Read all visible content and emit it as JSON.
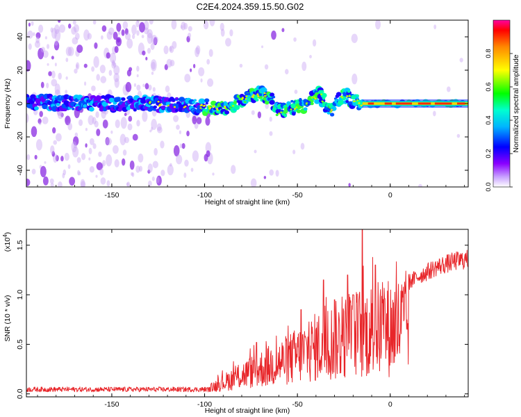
{
  "title": "C2E4.2024.359.15.50.G02",
  "chart_data": [
    {
      "type": "heatmap",
      "name": "spectrogram",
      "xlabel": "Height of straight line (km)",
      "ylabel": "Frequency (Hz)",
      "xlim": [
        -196,
        42
      ],
      "ylim": [
        -50,
        50
      ],
      "xticks": [
        -150,
        -100,
        -50,
        0
      ],
      "xtick_labels": [
        "-150",
        "-100",
        "-50",
        "0"
      ],
      "yticks": [
        -40,
        -20,
        0,
        20,
        40
      ],
      "ytick_labels": [
        "-40",
        "-20",
        "0",
        "20",
        "40"
      ],
      "colorbar": {
        "label": "Normalized spectral amplitude",
        "range": [
          0,
          1
        ],
        "ticks": [
          0.0,
          0.2,
          0.4,
          0.6,
          0.8
        ],
        "tick_labels": [
          "0.0",
          "0.2",
          "0.4",
          "0.6",
          "0.8"
        ],
        "colors": [
          "#ffffff",
          "#8a00ff",
          "#0000ff",
          "#00e5ff",
          "#00ff00",
          "#ffff00",
          "#ff0000",
          "#ff00a0"
        ]
      },
      "ridge": [
        {
          "x": -196,
          "y": 0.5
        },
        {
          "x": -130,
          "y": 0
        },
        {
          "x": -100,
          "y": -2
        },
        {
          "x": -90,
          "y": -3
        },
        {
          "x": -80,
          "y": 2
        },
        {
          "x": -70,
          "y": 6
        },
        {
          "x": -64,
          "y": 3
        },
        {
          "x": -60,
          "y": -5
        },
        {
          "x": -45,
          "y": 0
        },
        {
          "x": -38,
          "y": 6
        },
        {
          "x": -33,
          "y": -5
        },
        {
          "x": -25,
          "y": 5
        },
        {
          "x": -20,
          "y": 2
        },
        {
          "x": -15,
          "y": 0
        },
        {
          "x": 42,
          "y": 0
        }
      ]
    },
    {
      "type": "line",
      "name": "snr",
      "xlabel": "Height of straight line (km)",
      "ylabel": "SNR (10 * v/v)",
      "scale_label": "(x10",
      "scale_exponent": "4",
      "scale_close": ")",
      "xlim": [
        -196,
        42
      ],
      "ylim": [
        -0.03,
        1.66
      ],
      "xticks": [
        -150,
        -100,
        -50,
        0
      ],
      "xtick_labels": [
        "-150",
        "-100",
        "-50",
        "0"
      ],
      "yticks": [
        0.0,
        0.5,
        1.0,
        1.5
      ],
      "ytick_labels": [
        "0.0",
        "0.5",
        "1.0",
        "1.5"
      ],
      "color": "#e8262a",
      "envelope": [
        {
          "x": -196,
          "y": 0.05
        },
        {
          "x": -100,
          "y": 0.04
        },
        {
          "x": -95,
          "y": 0.12
        },
        {
          "x": -80,
          "y": 0.3
        },
        {
          "x": -70,
          "y": 0.4
        },
        {
          "x": -55,
          "y": 0.55
        },
        {
          "x": -40,
          "y": 0.75
        },
        {
          "x": -30,
          "y": 0.85
        },
        {
          "x": -20,
          "y": 0.95
        },
        {
          "x": -15,
          "y": 1.0
        },
        {
          "x": -5,
          "y": 1.05
        },
        {
          "x": 5,
          "y": 1.1
        },
        {
          "x": 15,
          "y": 1.22
        },
        {
          "x": 25,
          "y": 1.32
        },
        {
          "x": 35,
          "y": 1.38
        },
        {
          "x": 42,
          "y": 1.4
        }
      ],
      "peaks": [
        {
          "x": -15,
          "y": 1.66
        },
        {
          "x": -36,
          "y": 1.15
        },
        {
          "x": -23,
          "y": 1.2
        },
        {
          "x": -20,
          "y": 1.0
        },
        {
          "x": -72,
          "y": 0.52
        },
        {
          "x": -48,
          "y": 0.85
        },
        {
          "x": -30,
          "y": 0.95
        },
        {
          "x": -8,
          "y": 1.3
        }
      ]
    }
  ]
}
